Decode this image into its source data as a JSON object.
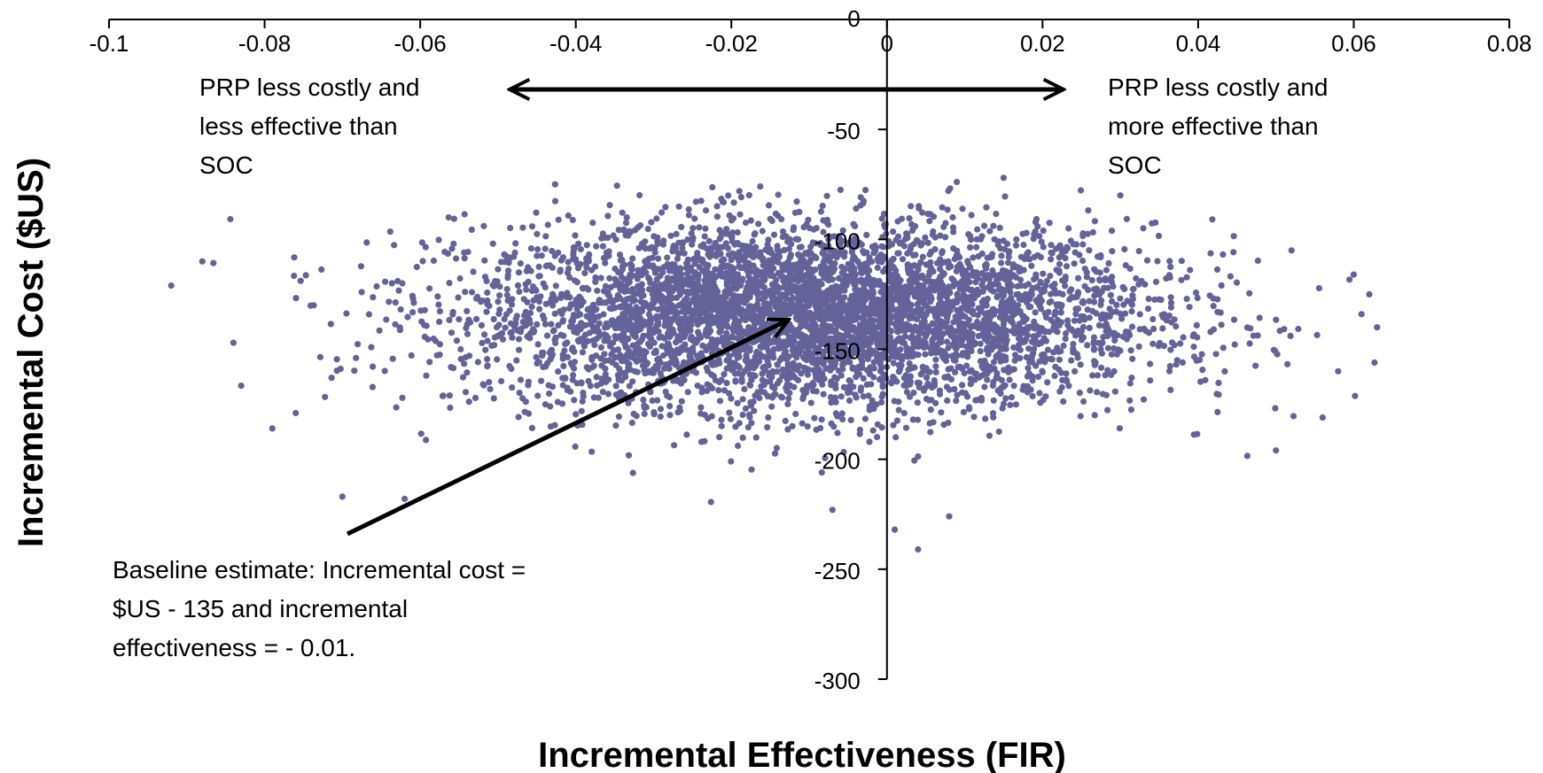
{
  "chart_data": {
    "type": "scatter",
    "title": "",
    "xlabel": "Incremental Effectiveness (FIR)",
    "ylabel": "Incremental Cost ($US)",
    "xlim": [
      -0.1,
      0.08
    ],
    "ylim": [
      -300,
      0
    ],
    "x_ticks": [
      "-0.1",
      "-0.08",
      "-0.06",
      "-0.04",
      "-0.02",
      "0",
      "0.02",
      "0.04",
      "0.06",
      "0.08"
    ],
    "y_ticks": [
      "0",
      "-50",
      "-100",
      "-150",
      "-200",
      "-250",
      "-300"
    ],
    "grid": false,
    "legend": "none",
    "marker_color": "#636399",
    "distribution": {
      "n_points_approx": 5000,
      "x_mean": -0.01,
      "x_sd": 0.022,
      "y_mean": -135,
      "y_sd": 21,
      "x_range": [
        -0.092,
        0.063
      ],
      "y_range": [
        -240,
        -72
      ]
    },
    "notable_points": [
      {
        "x": -0.092,
        "y": -121
      },
      {
        "x": -0.088,
        "y": -110
      },
      {
        "x": -0.084,
        "y": -147
      },
      {
        "x": -0.079,
        "y": -186
      },
      {
        "x": -0.076,
        "y": -179
      },
      {
        "x": -0.07,
        "y": -217
      },
      {
        "x": -0.062,
        "y": -218
      },
      {
        "x": 0.001,
        "y": -232
      },
      {
        "x": 0.004,
        "y": -241
      },
      {
        "x": 0.008,
        "y": -226
      },
      {
        "x": -0.007,
        "y": -223
      },
      {
        "x": 0.015,
        "y": -72
      },
      {
        "x": 0.03,
        "y": -80
      },
      {
        "x": 0.05,
        "y": -196
      },
      {
        "x": 0.052,
        "y": -105
      },
      {
        "x": 0.056,
        "y": -181
      },
      {
        "x": 0.058,
        "y": -160
      },
      {
        "x": 0.06,
        "y": -116
      },
      {
        "x": 0.061,
        "y": -134
      },
      {
        "x": 0.062,
        "y": -125
      },
      {
        "x": 0.063,
        "y": -140
      }
    ],
    "annotations": {
      "left_quadrant": "PRP less costly and\nless effective than\nSOC",
      "right_quadrant": "PRP less costly and\nmore effective than\nSOC",
      "baseline": "Baseline estimate:  Incremental cost =\n$US - 135 and incremental\neffectiveness = - 0.01."
    }
  }
}
